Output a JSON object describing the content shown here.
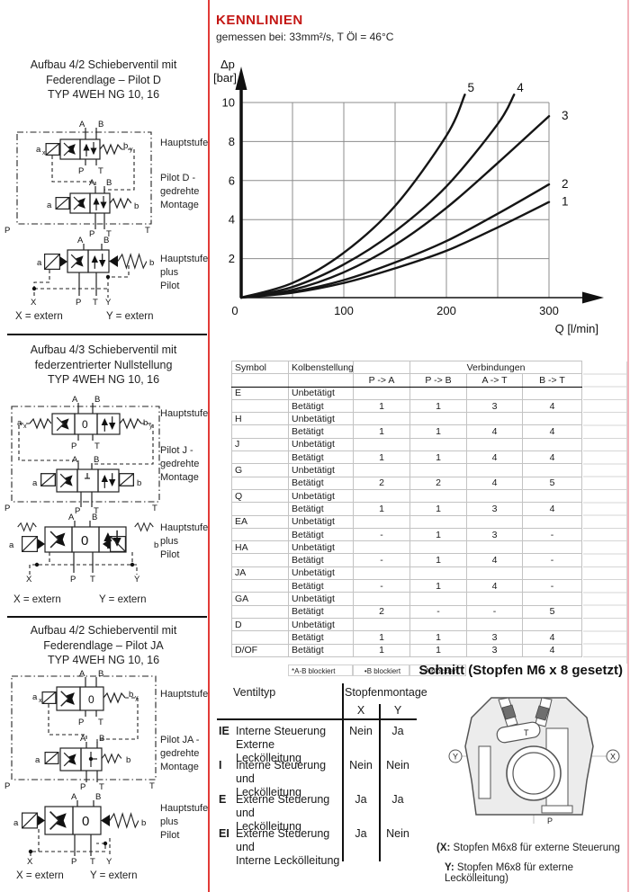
{
  "colors": {
    "accent_red": "#c41714",
    "divider_red": "#e23b37",
    "edge_pink": "#f3b1ba"
  },
  "valve_labels": {
    "A": "A",
    "B": "B",
    "P": "P",
    "T": "T",
    "X": "X",
    "Y": "Y",
    "a": "a",
    "b": "b",
    "x": "x",
    "y": "y",
    "zero": "0"
  },
  "sections": [
    {
      "title_lines": [
        "Aufbau 4/2 Schieberventil mit",
        "Federendlage – Pilot D",
        "TYP 4WEH NG 10, 16"
      ],
      "side_labels": [
        [
          "Hauptstufe"
        ],
        [
          "Pilot D -",
          "gedrehte",
          "Montage"
        ],
        [
          "Hauptstufe",
          "plus",
          "Pilot"
        ]
      ],
      "extern_x": "X =  extern",
      "extern_y": "Y =  extern"
    },
    {
      "title_lines": [
        "Aufbau 4/3 Schieberventil mit",
        "federzentrierter Nullstellung",
        "TYP 4WEH NG 10, 16"
      ],
      "side_labels": [
        [
          "Hauptstufe"
        ],
        [
          "Pilot J -",
          "gedrehte",
          "Montage"
        ],
        [
          "Hauptstufe",
          "plus",
          "Pilot"
        ]
      ],
      "extern_x": "X = extern",
      "extern_y": "Y = extern"
    },
    {
      "title_lines": [
        "Aufbau 4/2 Schieberventil mit",
        "Federendlage – Pilot JA",
        "TYP 4WEH NG 10, 16"
      ],
      "side_labels": [
        [
          "Hauptstufe"
        ],
        [
          "Pilot JA -",
          "gedrehte",
          "Montage"
        ],
        [
          "Hauptstufe",
          "plus",
          "Pilot"
        ]
      ],
      "extern_x": "X = extern",
      "extern_y": "Y = extern"
    }
  ],
  "chart": {
    "title": "KENNLINIEN",
    "subtitle": "gemessen bei: 33mm²/s, T Öl = 46°C",
    "ylabel_1": "Δp",
    "ylabel_2": "[bar]",
    "xlabel": "Q [l/min]"
  },
  "chart_data": {
    "type": "line",
    "title": "KENNLINIEN",
    "subtitle": "gemessen bei: 33mm²/s, T Öl = 46°C",
    "xlabel": "Q [l/min]",
    "ylabel": "Δp [bar]",
    "xlim": [
      0,
      340
    ],
    "ylim": [
      0,
      10.5
    ],
    "x_ticks": [
      0,
      100,
      200,
      300
    ],
    "y_ticks": [
      2,
      4,
      6,
      8,
      10
    ],
    "grid": true,
    "grid_step_x": 50,
    "legend_position": "on-curve",
    "series": [
      {
        "name": "1",
        "points": [
          [
            0,
            0
          ],
          [
            50,
            0.25
          ],
          [
            100,
            0.75
          ],
          [
            150,
            1.5
          ],
          [
            200,
            2.4
          ],
          [
            250,
            3.6
          ],
          [
            300,
            4.9
          ]
        ]
      },
      {
        "name": "2",
        "points": [
          [
            0,
            0
          ],
          [
            50,
            0.3
          ],
          [
            100,
            0.9
          ],
          [
            150,
            1.8
          ],
          [
            200,
            2.9
          ],
          [
            250,
            4.3
          ],
          [
            300,
            5.8
          ]
        ]
      },
      {
        "name": "3",
        "points": [
          [
            0,
            0
          ],
          [
            50,
            0.4
          ],
          [
            100,
            1.3
          ],
          [
            150,
            2.7
          ],
          [
            200,
            4.6
          ],
          [
            250,
            6.9
          ],
          [
            300,
            9.3
          ]
        ]
      },
      {
        "name": "4",
        "points": [
          [
            0,
            0
          ],
          [
            50,
            0.55
          ],
          [
            100,
            1.7
          ],
          [
            150,
            3.4
          ],
          [
            200,
            5.7
          ],
          [
            250,
            8.9
          ],
          [
            266,
            10.4
          ]
        ]
      },
      {
        "name": "5",
        "points": [
          [
            0,
            0
          ],
          [
            50,
            0.75
          ],
          [
            100,
            2.3
          ],
          [
            150,
            4.7
          ],
          [
            200,
            8.3
          ],
          [
            218,
            10.4
          ]
        ]
      }
    ]
  },
  "connections_table": {
    "col_symbol": "Symbol",
    "col_kolben": "Kolbenstellung",
    "col_verbindungen": "Verbindungen",
    "sub_cols": [
      "P -> A",
      "P -> B",
      "A -> T",
      "B -> T"
    ],
    "state_unbetaetigt": "Unbetätigt",
    "state_betaetigt": "Betätigt",
    "rows": [
      {
        "symbol": "E",
        "betaetigt": [
          "1",
          "1",
          "3",
          "4"
        ]
      },
      {
        "symbol": "H",
        "betaetigt": [
          "1",
          "1",
          "4",
          "4"
        ]
      },
      {
        "symbol": "J",
        "betaetigt": [
          "1",
          "1",
          "4",
          "4"
        ]
      },
      {
        "symbol": "G",
        "betaetigt": [
          "2",
          "2",
          "4",
          "5"
        ]
      },
      {
        "symbol": "Q",
        "betaetigt": [
          "1",
          "1",
          "3",
          "4"
        ]
      },
      {
        "symbol": "EA",
        "betaetigt": [
          "-",
          "1",
          "3",
          "-"
        ]
      },
      {
        "symbol": "HA",
        "betaetigt": [
          "-",
          "1",
          "4",
          "-"
        ]
      },
      {
        "symbol": "JA",
        "betaetigt": [
          "-",
          "1",
          "4",
          "-"
        ]
      },
      {
        "symbol": "GA",
        "betaetigt": [
          "2",
          "-",
          "-",
          "5"
        ]
      },
      {
        "symbol": "D",
        "betaetigt": [
          "1",
          "1",
          "3",
          "4"
        ]
      }
    ],
    "last_row": {
      "symbol": "D/OF",
      "state": "Betätigt",
      "values": [
        "1",
        "1",
        "3",
        "4"
      ]
    },
    "footnotes": [
      "*A-B blockiert",
      "•B blockiert",
      "○A blockiert"
    ]
  },
  "schnitt": {
    "title": "Schnitt (Stopfen M6 x 8 gesetzt)",
    "caption_x_prefix": "(X:",
    "caption_x_text": " Stopfen M6x8 für externe Steuerung",
    "caption_y_prefix": "Y:",
    "caption_y_text": " Stopfen M6x8 für externe Leckölleitung)"
  },
  "ventiltyp": {
    "header_left": "Ventiltyp",
    "header_right": "Stopfenmontage",
    "col_x": "X",
    "col_y": "Y",
    "rows": [
      {
        "code": "IE",
        "desc": [
          "Interne Steuerung",
          "Externe Leckölleitung"
        ],
        "x": "Nein",
        "y": "Ja"
      },
      {
        "code": "I",
        "desc": [
          "Interne Steuerung und",
          "Leckölleitung"
        ],
        "x": "Nein",
        "y": "Nein"
      },
      {
        "code": "E",
        "desc": [
          "Externe Steuerung und",
          "Leckölleitung"
        ],
        "x": "Ja",
        "y": "Ja"
      },
      {
        "code": "EI",
        "desc": [
          "Externe Steuerung und",
          "Interne Leckölleitung"
        ],
        "x": "Ja",
        "y": "Nein"
      }
    ]
  }
}
